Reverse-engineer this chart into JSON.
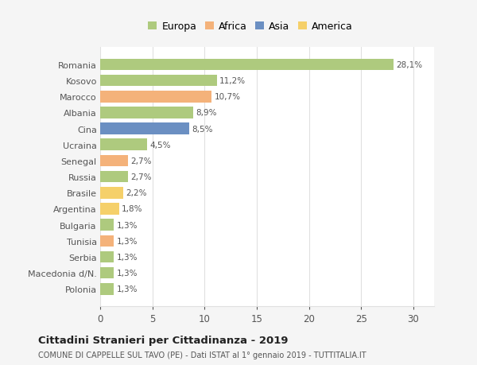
{
  "countries": [
    "Romania",
    "Kosovo",
    "Marocco",
    "Albania",
    "Cina",
    "Ucraina",
    "Senegal",
    "Russia",
    "Brasile",
    "Argentina",
    "Bulgaria",
    "Tunisia",
    "Serbia",
    "Macedonia d/N.",
    "Polonia"
  ],
  "values": [
    28.1,
    11.2,
    10.7,
    8.9,
    8.5,
    4.5,
    2.7,
    2.7,
    2.2,
    1.8,
    1.3,
    1.3,
    1.3,
    1.3,
    1.3
  ],
  "labels": [
    "28,1%",
    "11,2%",
    "10,7%",
    "8,9%",
    "8,5%",
    "4,5%",
    "2,7%",
    "2,7%",
    "2,2%",
    "1,8%",
    "1,3%",
    "1,3%",
    "1,3%",
    "1,3%",
    "1,3%"
  ],
  "colors": [
    "#aeca7e",
    "#aeca7e",
    "#f4b27a",
    "#aeca7e",
    "#6b8fc2",
    "#aeca7e",
    "#f4b27a",
    "#aeca7e",
    "#f5d06a",
    "#f5d06a",
    "#aeca7e",
    "#f4b27a",
    "#aeca7e",
    "#aeca7e",
    "#aeca7e"
  ],
  "legend_labels": [
    "Europa",
    "Africa",
    "Asia",
    "America"
  ],
  "legend_colors": [
    "#aeca7e",
    "#f4b27a",
    "#6b8fc2",
    "#f5d06a"
  ],
  "title": "Cittadini Stranieri per Cittadinanza - 2019",
  "subtitle": "COMUNE DI CAPPELLE SUL TAVO (PE) - Dati ISTAT al 1° gennaio 2019 - TUTTITALIA.IT",
  "xlim": [
    0,
    32
  ],
  "xticks": [
    0,
    5,
    10,
    15,
    20,
    25,
    30
  ],
  "fig_background_color": "#f5f5f5",
  "plot_background_color": "#ffffff",
  "grid_color": "#e0e0e0",
  "text_color": "#555555",
  "label_color": "#555555"
}
